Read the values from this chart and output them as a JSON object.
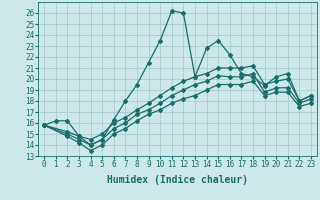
{
  "bg_color": "#cce8e8",
  "grid_color": "#aacccc",
  "line_color": "#1a6e6a",
  "marker": "D",
  "markersize": 2.0,
  "linewidth": 0.9,
  "xlabel": "Humidex (Indice chaleur)",
  "xlabel_fontsize": 7,
  "xlim": [
    -0.5,
    23.5
  ],
  "ylim": [
    13,
    27
  ],
  "xticks": [
    0,
    1,
    2,
    3,
    4,
    5,
    6,
    7,
    8,
    9,
    10,
    11,
    12,
    13,
    14,
    15,
    16,
    17,
    18,
    19,
    20,
    21,
    22,
    23
  ],
  "yticks": [
    13,
    14,
    15,
    16,
    17,
    18,
    19,
    20,
    21,
    22,
    23,
    24,
    25,
    26
  ],
  "tick_fontsize": 5.5,
  "series": [
    {
      "x": [
        0,
        1,
        2,
        3,
        4,
        5,
        6,
        7,
        8,
        9,
        10,
        11,
        12,
        13,
        14,
        15,
        16,
        17,
        18,
        19,
        20,
        21,
        22,
        23
      ],
      "y": [
        15.8,
        16.2,
        16.2,
        14.8,
        14.0,
        14.5,
        16.3,
        18.0,
        19.5,
        21.5,
        23.5,
        26.2,
        26.0,
        20.2,
        22.8,
        23.5,
        22.2,
        20.5,
        20.2,
        19.4,
        20.2,
        20.5,
        18.0,
        18.5
      ]
    },
    {
      "x": [
        0,
        2,
        3,
        4,
        5,
        6,
        7,
        8,
        9,
        10,
        11,
        12,
        13,
        14,
        15,
        16,
        17,
        18,
        19,
        20,
        21,
        22,
        23
      ],
      "y": [
        15.8,
        15.2,
        14.8,
        14.5,
        15.0,
        16.0,
        16.5,
        17.2,
        17.8,
        18.5,
        19.2,
        19.8,
        20.2,
        20.5,
        21.0,
        21.0,
        21.0,
        21.2,
        19.5,
        19.8,
        20.0,
        18.0,
        18.5
      ]
    },
    {
      "x": [
        0,
        2,
        3,
        4,
        5,
        6,
        7,
        8,
        9,
        10,
        11,
        12,
        13,
        14,
        15,
        16,
        17,
        18,
        19,
        20,
        21,
        22,
        23
      ],
      "y": [
        15.8,
        15.0,
        14.5,
        14.0,
        14.5,
        15.5,
        16.0,
        16.8,
        17.2,
        17.8,
        18.5,
        19.0,
        19.5,
        19.8,
        20.3,
        20.2,
        20.2,
        20.5,
        18.8,
        19.2,
        19.2,
        17.8,
        18.2
      ]
    },
    {
      "x": [
        0,
        2,
        3,
        4,
        5,
        6,
        7,
        8,
        9,
        10,
        11,
        12,
        13,
        14,
        15,
        16,
        17,
        18,
        19,
        20,
        21,
        22,
        23
      ],
      "y": [
        15.8,
        14.8,
        14.2,
        13.5,
        14.0,
        15.0,
        15.5,
        16.2,
        16.8,
        17.2,
        17.8,
        18.2,
        18.5,
        19.0,
        19.5,
        19.5,
        19.5,
        19.8,
        18.5,
        18.8,
        18.8,
        17.5,
        17.8
      ]
    }
  ]
}
